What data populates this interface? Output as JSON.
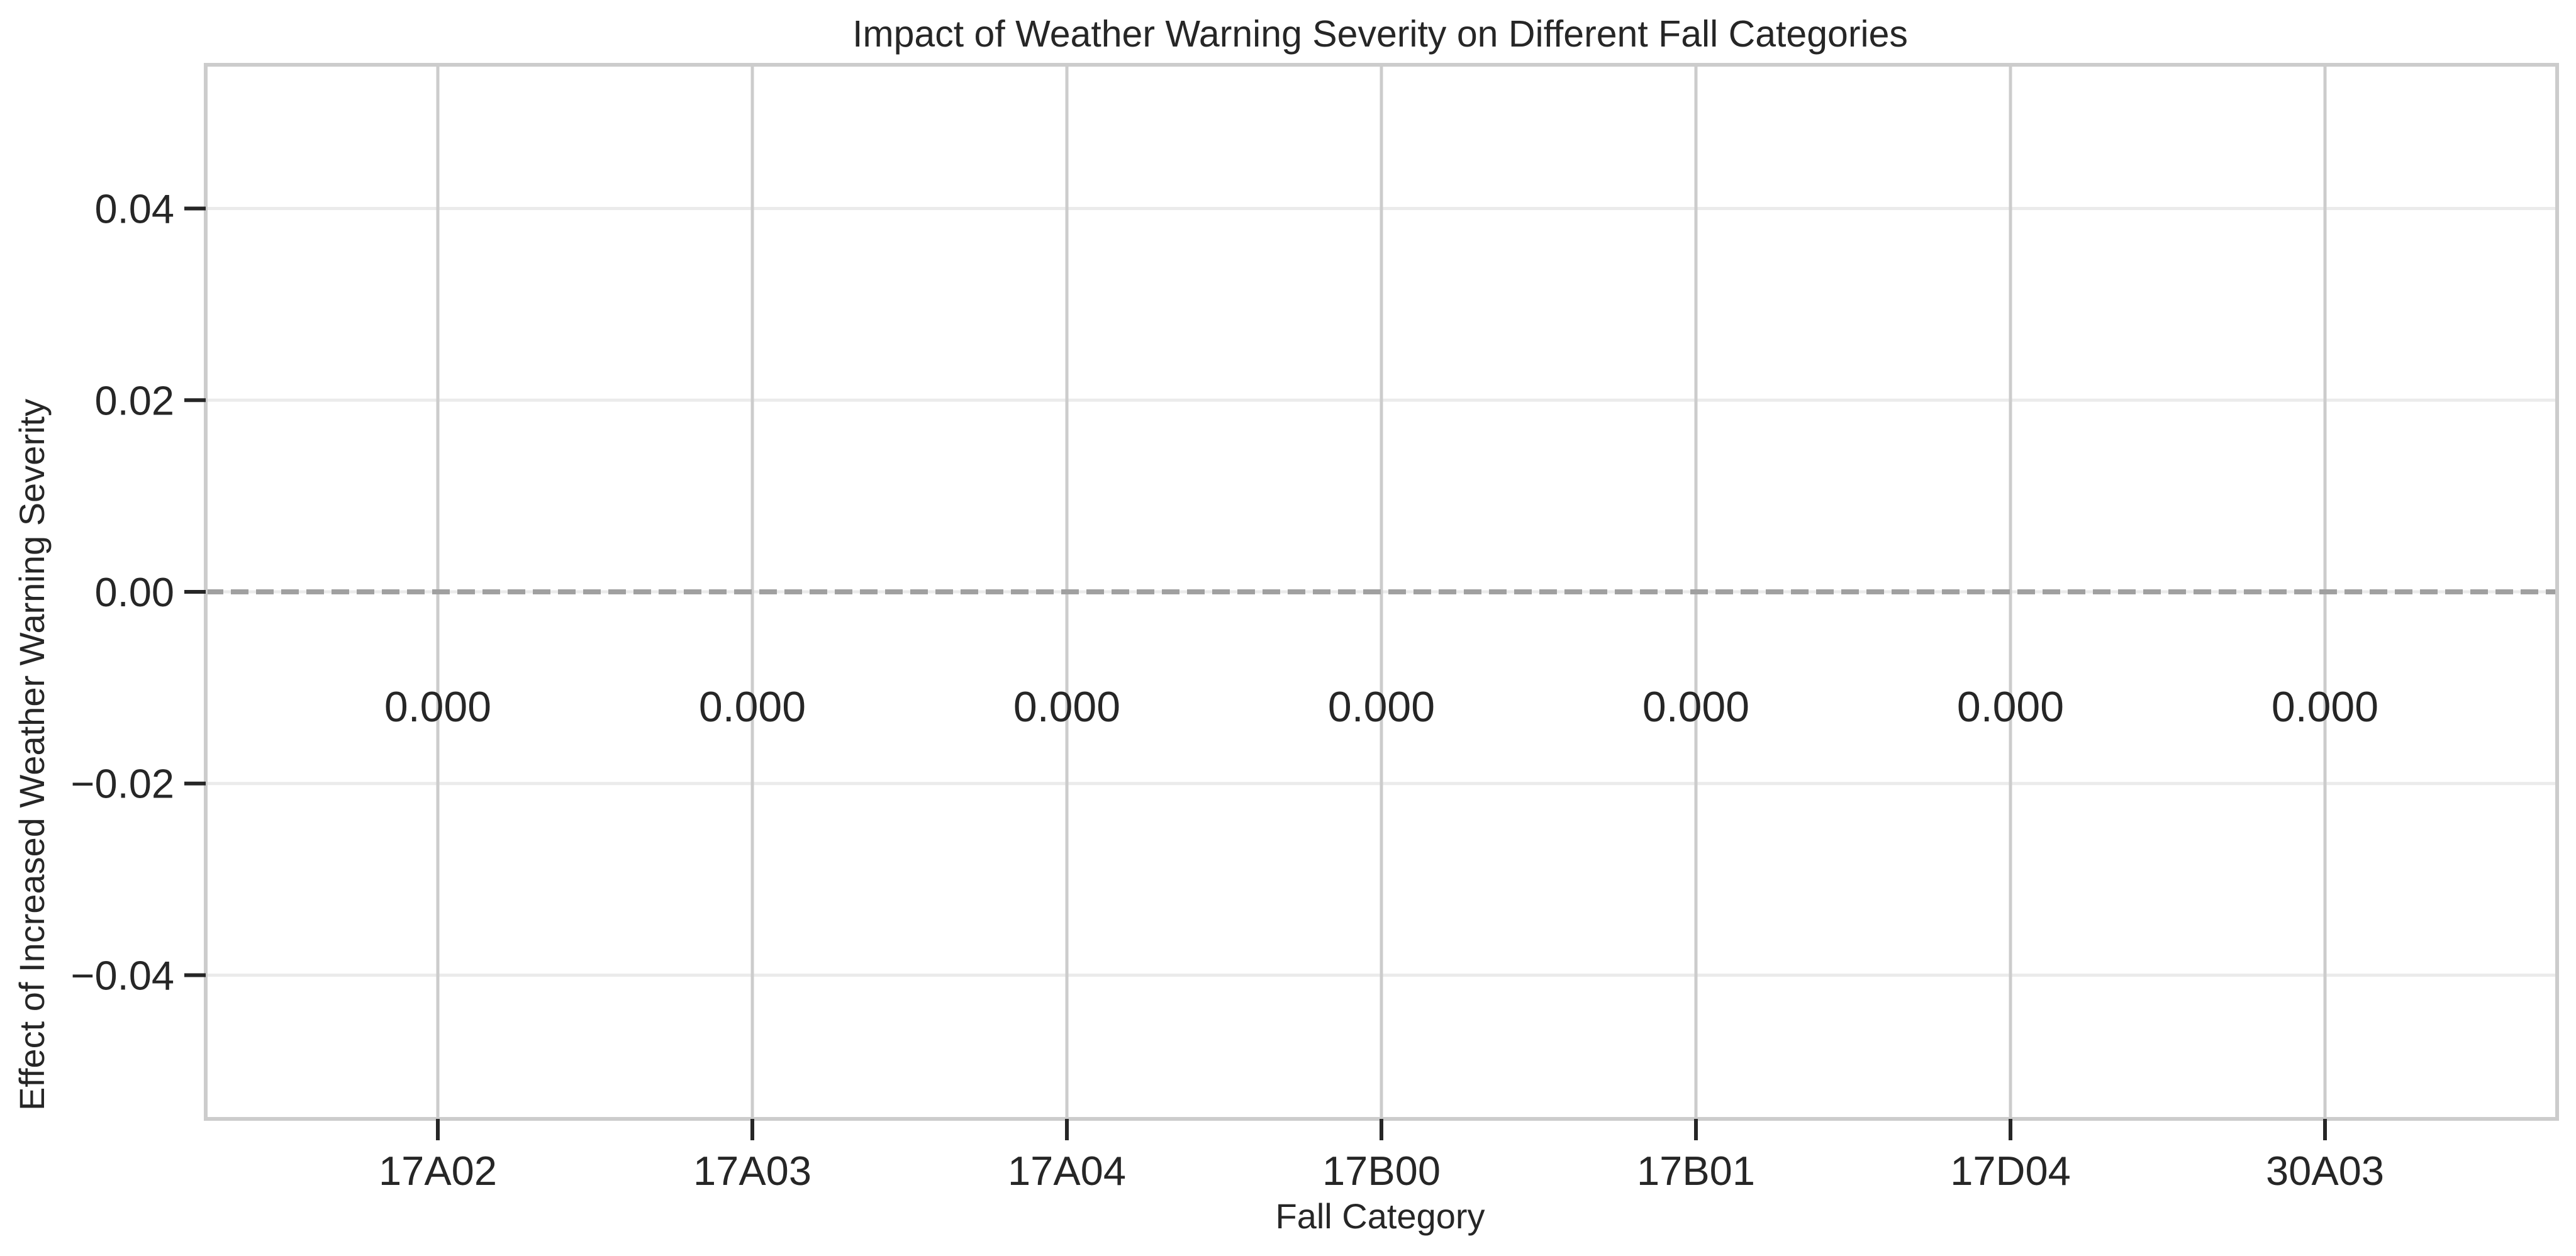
{
  "chart_data": {
    "type": "bar",
    "title": "Impact of Weather Warning Severity on Different Fall Categories",
    "xlabel": "Fall Category",
    "ylabel": "Effect of Increased Weather Warning Severity",
    "categories": [
      "17A02",
      "17A03",
      "17A04",
      "17B00",
      "17B01",
      "17D04",
      "30A03"
    ],
    "values": [
      0.0,
      0.0,
      0.0,
      0.0,
      0.0,
      0.0,
      0.0
    ],
    "data_labels": [
      "0.000",
      "0.000",
      "0.000",
      "0.000",
      "0.000",
      "0.000",
      "0.000"
    ],
    "ylim": [
      -0.055,
      0.055
    ],
    "yticks": [
      -0.04,
      -0.02,
      0.0,
      0.02,
      0.04
    ],
    "ytick_labels": [
      "−0.04",
      "−0.02",
      "0.00",
      "0.02",
      "0.04"
    ],
    "reference_line": {
      "y": 0.0,
      "style": "dashed",
      "color": "#a0a0a0"
    },
    "grid": true,
    "colors": {
      "grid": "#ebebeb",
      "vertical_grid": "#cccccc",
      "spine": "#cccccc",
      "tick": "#262626",
      "text": "#262626"
    }
  }
}
